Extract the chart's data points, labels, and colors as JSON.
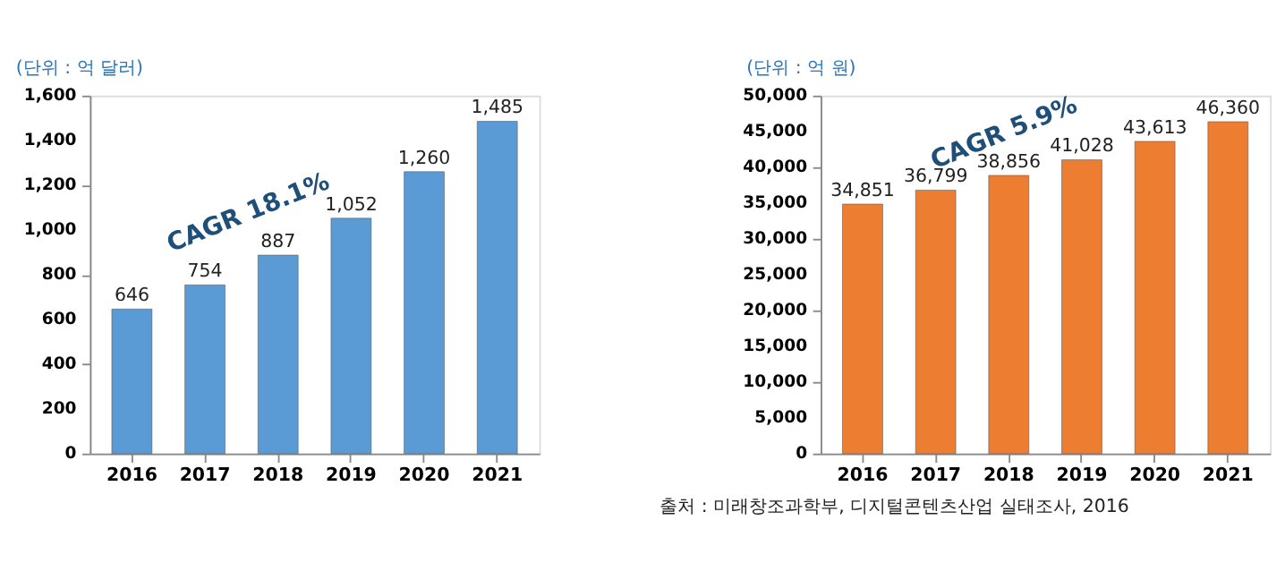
{
  "chart_data": [
    {
      "type": "bar",
      "ylabel": "(단위 : 억 달러)",
      "categories": [
        "2016",
        "2017",
        "2018",
        "2019",
        "2020",
        "2021"
      ],
      "values": [
        646,
        754,
        887,
        1052,
        1260,
        1485
      ],
      "data_labels": true,
      "value_labels": [
        "646",
        "754",
        "887",
        "1,052",
        "1,260",
        "1,485"
      ],
      "color": "#5b9bd5",
      "ylim": [
        0,
        1600
      ],
      "yticks": [
        {
          "value": 0,
          "label": "0"
        },
        {
          "value": 200,
          "label": "200"
        },
        {
          "value": 400,
          "label": "400"
        },
        {
          "value": 600,
          "label": "600"
        },
        {
          "value": 800,
          "label": "800"
        },
        {
          "value": 1000,
          "label": "1,000"
        },
        {
          "value": 1200,
          "label": "1,200"
        },
        {
          "value": 1400,
          "label": "1,400"
        },
        {
          "value": 1600,
          "label": "1,600"
        }
      ],
      "grid": false,
      "annotations": [
        "CAGR 18.1%"
      ]
    },
    {
      "type": "bar",
      "ylabel": "(단위 : 억 원)",
      "categories": [
        "2016",
        "2017",
        "2018",
        "2019",
        "2020",
        "2021"
      ],
      "values": [
        34851,
        36799,
        38856,
        41028,
        43613,
        46360
      ],
      "data_labels": true,
      "value_labels": [
        "34,851",
        "36,799",
        "38,856",
        "41,028",
        "43,613",
        "46,360"
      ],
      "color": "#ed7d31",
      "ylim": [
        0,
        50000
      ],
      "yticks": [
        {
          "value": 0,
          "label": "0"
        },
        {
          "value": 5000,
          "label": "5,000"
        },
        {
          "value": 10000,
          "label": "10,000"
        },
        {
          "value": 15000,
          "label": "15,000"
        },
        {
          "value": 20000,
          "label": "20,000"
        },
        {
          "value": 25000,
          "label": "25,000"
        },
        {
          "value": 30000,
          "label": "30,000"
        },
        {
          "value": 35000,
          "label": "35,000"
        },
        {
          "value": 40000,
          "label": "40,000"
        },
        {
          "value": 45000,
          "label": "45,000"
        },
        {
          "value": 50000,
          "label": "50,000"
        }
      ],
      "grid": false,
      "annotations": [
        "CAGR 5.9%",
        "출처 : 미래창조과학부,  디지털콘텐츠산업 실태조사, 2016"
      ]
    }
  ]
}
